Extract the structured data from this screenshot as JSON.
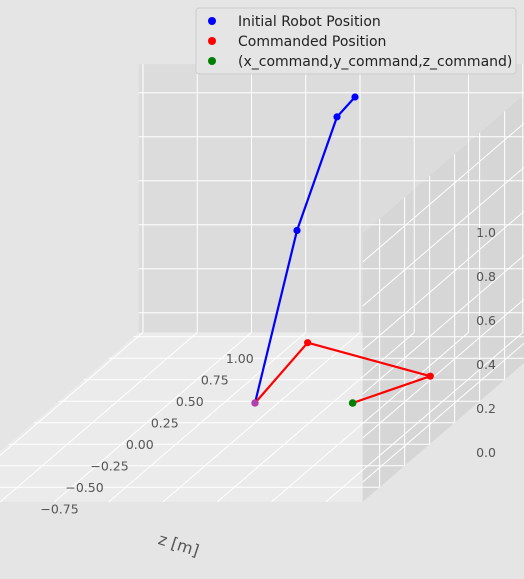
{
  "chart_data": {
    "type": "line3d",
    "axes": {
      "x": {
        "label": "z [m]",
        "ticks": [
          "−0.75",
          "−0.50",
          "−0.25",
          "0.00",
          "0.25",
          "0.50",
          "0.75",
          "1.00"
        ]
      },
      "y": {
        "label": "",
        "ticks": [
          "−0.75",
          "−0.50",
          "−0.25",
          "0.00",
          "0.25",
          "0.50",
          "0.75",
          "1.00"
        ]
      },
      "z": {
        "label": "",
        "ticks": [
          "0.0",
          "0.2",
          "0.4",
          "0.6",
          "0.8",
          "1.0"
        ]
      }
    },
    "grid": true,
    "legend": {
      "placement": "top-right",
      "entries": [
        {
          "label": "Initial Robot Position",
          "color": "#0000ff"
        },
        {
          "label": "Commanded Position",
          "color": "#ff0000"
        },
        {
          "label": "(x_command,y_command,z_command)",
          "color": "#008000"
        }
      ]
    },
    "series": [
      {
        "name": "Initial Robot Position",
        "color": "#0000ff",
        "points": [
          [
            0,
            0,
            0
          ],
          [
            0,
            0.42,
            0.62
          ],
          [
            0,
            0.82,
            0.98
          ],
          [
            0,
            1.0,
            1.0
          ]
        ]
      },
      {
        "name": "Commanded Position",
        "color": "#ff0000",
        "points": [
          [
            0,
            0,
            0
          ],
          [
            -0.45,
            -0.45,
            0.45
          ],
          [
            -0.9,
            -0.2,
            0.2
          ],
          [
            -0.45,
            0,
            0
          ]
        ]
      },
      {
        "name": "(x_command,y_command,z_command)",
        "color": "#008000",
        "points": [
          [
            -0.45,
            0,
            0
          ]
        ]
      }
    ]
  }
}
